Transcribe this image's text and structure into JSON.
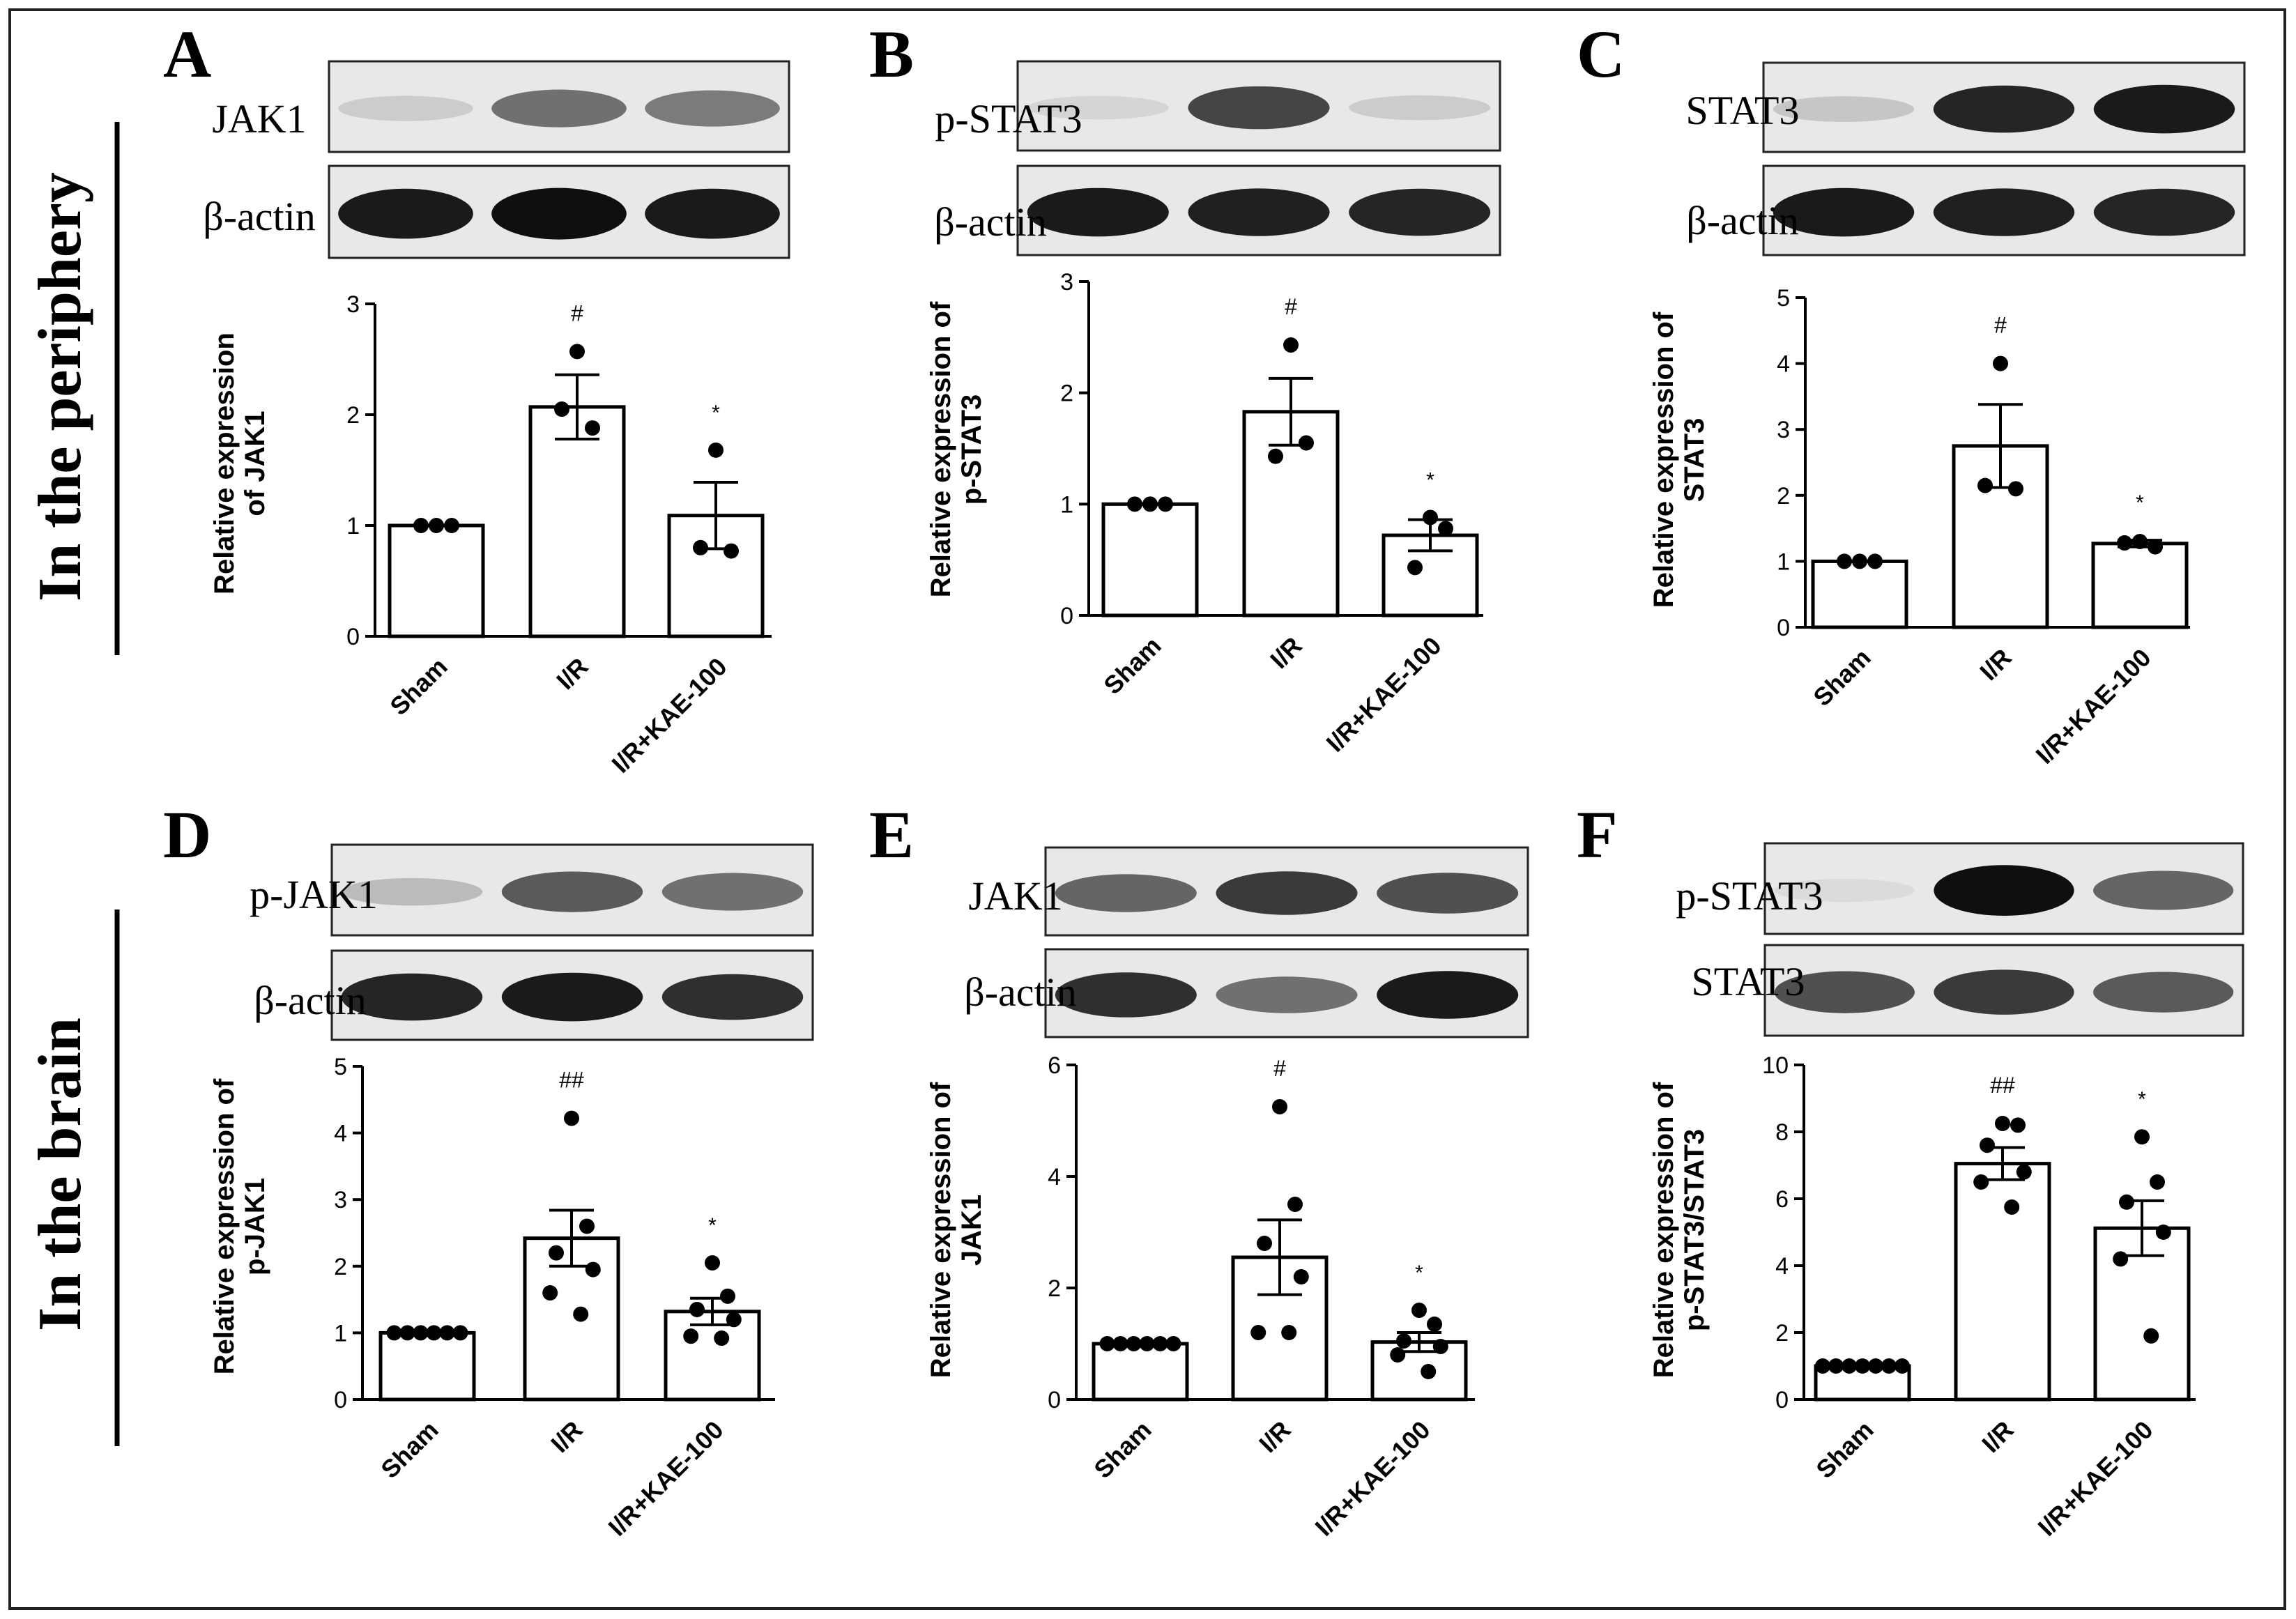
{
  "sections": {
    "periphery": "In the periphery",
    "brain": "In the brain"
  },
  "panels": [
    {
      "letter": "A",
      "blots": [
        {
          "label": "JAK1",
          "bands": [
            0.12,
            0.55,
            0.5
          ]
        },
        {
          "label": "β-actin",
          "bands": [
            0.95,
            1.0,
            0.95
          ]
        }
      ],
      "chart_data": {
        "type": "bar",
        "categories": [
          "Sham",
          "I/R",
          "I/R+KAE-100"
        ],
        "values": [
          1.0,
          2.07,
          1.09
        ],
        "errors": [
          0,
          0.29,
          0.3
        ],
        "points": [
          [
            1,
            1,
            1
          ],
          [
            2.57,
            1.88,
            2.05
          ],
          [
            1.68,
            0.77,
            0.8
          ]
        ],
        "significance": [
          "",
          "#",
          "*"
        ],
        "ylabel": [
          "Relative expression",
          "of JAK1"
        ],
        "ylim": [
          0,
          3
        ],
        "yticks": [
          0,
          1,
          2,
          3
        ]
      }
    },
    {
      "letter": "B",
      "blots": [
        {
          "label": "p-STAT3",
          "bands": [
            0.08,
            0.75,
            0.12
          ]
        },
        {
          "label": "β-actin",
          "bands": [
            0.95,
            0.92,
            0.9
          ]
        }
      ],
      "chart_data": {
        "type": "bar",
        "categories": [
          "Sham",
          "I/R",
          "I/R+KAE-100"
        ],
        "values": [
          1.0,
          1.83,
          0.72
        ],
        "errors": [
          0,
          0.3,
          0.14
        ],
        "points": [
          [
            1,
            1,
            1
          ],
          [
            2.43,
            1.55,
            1.43
          ],
          [
            0.88,
            0.78,
            0.43
          ]
        ],
        "significance": [
          "",
          "#",
          "*"
        ],
        "ylabel": [
          "Relative expression of",
          "p-STAT3"
        ],
        "ylim": [
          0,
          3
        ],
        "yticks": [
          0,
          1,
          2,
          3
        ]
      }
    },
    {
      "letter": "C",
      "blots": [
        {
          "label": "STAT3",
          "bands": [
            0.15,
            0.9,
            0.95
          ]
        },
        {
          "label": "β-actin",
          "bands": [
            0.95,
            0.92,
            0.9
          ]
        }
      ],
      "chart_data": {
        "type": "bar",
        "categories": [
          "Sham",
          "I/R",
          "I/R+KAE-100"
        ],
        "values": [
          1.0,
          2.75,
          1.27
        ],
        "errors": [
          0,
          0.63,
          0.05
        ],
        "points": [
          [
            1,
            1,
            1
          ],
          [
            4.0,
            2.1,
            2.15
          ],
          [
            1.3,
            1.22,
            1.28
          ]
        ],
        "significance": [
          "",
          "#",
          "*"
        ],
        "ylabel": [
          "Relative expression of",
          "STAT3"
        ],
        "ylim": [
          0,
          5
        ],
        "yticks": [
          0,
          1,
          2,
          3,
          4,
          5
        ]
      }
    },
    {
      "letter": "D",
      "blots": [
        {
          "label": "p-JAK1",
          "bands": [
            0.2,
            0.65,
            0.55
          ]
        },
        {
          "label": "β-actin",
          "bands": [
            0.9,
            0.95,
            0.85
          ]
        }
      ],
      "chart_data": {
        "type": "bar",
        "categories": [
          "Sham",
          "I/R",
          "I/R+KAE-100"
        ],
        "values": [
          1.0,
          2.42,
          1.32
        ],
        "errors": [
          0,
          0.42,
          0.2
        ],
        "points": [
          [
            1,
            1,
            1,
            1,
            1,
            1
          ],
          [
            4.22,
            2.6,
            2.2,
            1.95,
            1.6,
            1.28
          ],
          [
            2.05,
            1.55,
            1.35,
            1.2,
            0.95,
            0.92
          ]
        ],
        "significance": [
          "",
          "##",
          "*"
        ],
        "ylabel": [
          "Relative expression of",
          "p-JAK1"
        ],
        "ylim": [
          0,
          5
        ],
        "yticks": [
          0,
          1,
          2,
          3,
          4,
          5
        ]
      }
    },
    {
      "letter": "E",
      "blots": [
        {
          "label": "JAK1",
          "bands": [
            0.6,
            0.8,
            0.7
          ]
        },
        {
          "label": "β-actin",
          "bands": [
            0.85,
            0.55,
            0.95
          ]
        }
      ],
      "chart_data": {
        "type": "bar",
        "categories": [
          "Sham",
          "I/R",
          "I/R+KAE-100"
        ],
        "values": [
          1.0,
          2.55,
          1.03
        ],
        "errors": [
          0,
          0.67,
          0.17
        ],
        "points": [
          [
            1,
            1,
            1,
            1,
            1,
            1
          ],
          [
            5.25,
            3.5,
            2.8,
            2.2,
            1.2,
            1.2
          ],
          [
            1.6,
            1.35,
            1.05,
            0.95,
            0.8,
            0.5
          ]
        ],
        "significance": [
          "",
          "#",
          "*"
        ],
        "ylabel": [
          "Relative expression of",
          "JAK1"
        ],
        "ylim": [
          0,
          6
        ],
        "yticks": [
          0,
          2,
          4,
          6
        ]
      }
    },
    {
      "letter": "F",
      "blots": [
        {
          "label": "p-STAT3",
          "bands": [
            0.05,
            1.0,
            0.6
          ]
        },
        {
          "label": "STAT3",
          "bands": [
            0.7,
            0.8,
            0.65
          ]
        }
      ],
      "chart_data": {
        "type": "bar",
        "categories": [
          "Sham",
          "I/R",
          "I/R+KAE-100"
        ],
        "values": [
          1.0,
          7.05,
          5.12
        ],
        "errors": [
          0,
          0.48,
          0.82
        ],
        "points": [
          [
            1,
            1,
            1,
            1,
            1,
            1,
            1
          ],
          [
            8.25,
            8.2,
            7.6,
            6.8,
            6.5,
            5.75
          ],
          [
            7.85,
            6.5,
            5.9,
            5.0,
            4.2,
            1.9
          ]
        ],
        "significance": [
          "",
          "##",
          "*"
        ],
        "ylabel": [
          "Relative expression of",
          "p-STAT3/STAT3"
        ],
        "ylim": [
          0,
          10
        ],
        "yticks": [
          0,
          2,
          4,
          6,
          8,
          10
        ]
      }
    }
  ]
}
